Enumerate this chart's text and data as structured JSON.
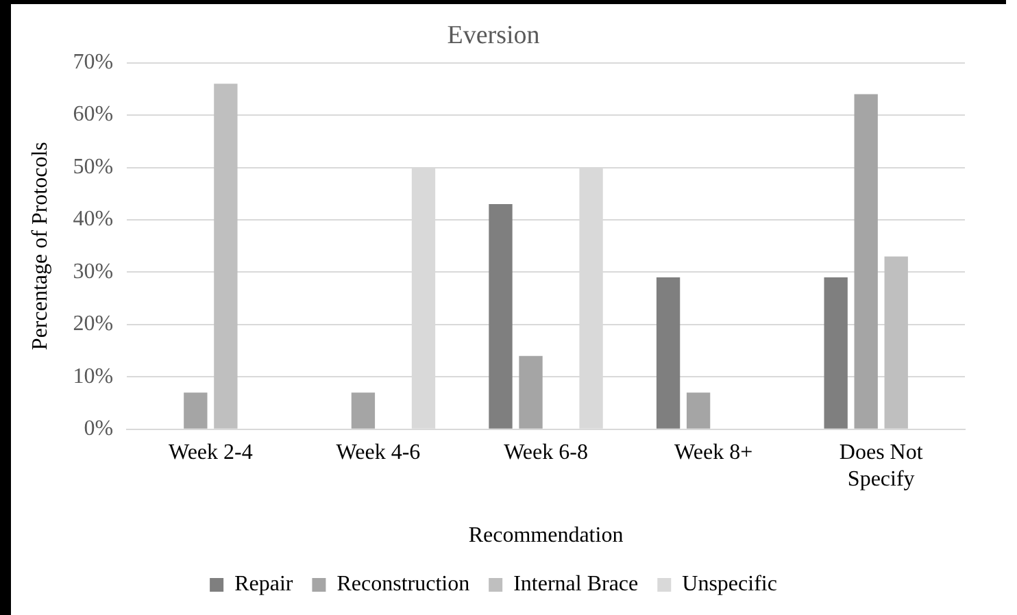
{
  "chart_data": {
    "type": "bar",
    "title": "Eversion",
    "xlabel": "Recommendation",
    "ylabel": "Percentage of Protocols",
    "categories": [
      "Week 2-4",
      "Week 4-6",
      "Week 6-8",
      "Week 8+",
      "Does Not Specify"
    ],
    "series": [
      {
        "name": "Repair",
        "color": "#7f7f7f",
        "values": [
          0,
          0,
          43,
          29,
          29
        ]
      },
      {
        "name": "Reconstruction",
        "color": "#a5a5a5",
        "values": [
          7,
          7,
          14,
          7,
          64
        ]
      },
      {
        "name": "Internal Brace",
        "color": "#bfbfbf",
        "values": [
          66,
          0,
          0,
          0,
          33
        ]
      },
      {
        "name": "Unspecific",
        "color": "#d9d9d9",
        "values": [
          0,
          50,
          50,
          0,
          0
        ]
      }
    ],
    "ylim": [
      0,
      70
    ],
    "yticks": [
      {
        "value": 0,
        "label": "0%"
      },
      {
        "value": 10,
        "label": "10%"
      },
      {
        "value": 20,
        "label": "20%"
      },
      {
        "value": 30,
        "label": "30%"
      },
      {
        "value": 40,
        "label": "40%"
      },
      {
        "value": 50,
        "label": "50%"
      },
      {
        "value": 60,
        "label": "60%"
      },
      {
        "value": 70,
        "label": "70%"
      }
    ],
    "grid": "y",
    "legend": "bottom"
  }
}
